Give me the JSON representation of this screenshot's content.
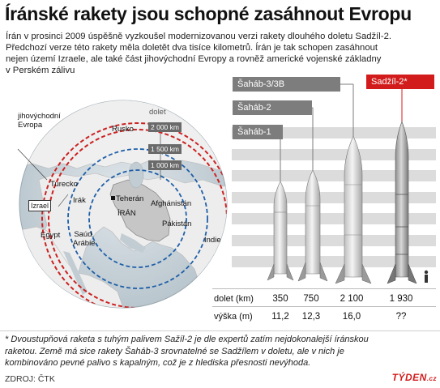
{
  "title": "Íránské rakety jsou schopné zasáhnout Evropu",
  "intro_lines": [
    "Írán v prosinci 2009 úspěšně vyzkoušel modernizovanou verzi rakety dlouhého doletu Sadžíl-2.",
    "Předchozí verze této rakety měla doletět dva tisíce kilometrů. Írán je tak schopen zasáhnout",
    "nejen území Izraele, ale také část jihovýchodní Evropy a rovněž americké vojenské základny",
    "v Perském zálivu"
  ],
  "map": {
    "legend_title": "dolet",
    "ranges": [
      "2 000 km",
      "1 500 km",
      "1 000 km"
    ],
    "labels": {
      "se_europe_1": "jihovýchodní",
      "se_europe_2": "Evropa",
      "russia": "Rusko",
      "turkey": "Turecko",
      "israel": "Izrael",
      "iraq": "Irák",
      "tehran": "Teherán",
      "iran": "ÍRÁN",
      "afghanistan": "Afghánistán",
      "pakistan": "Pákistán",
      "egypt": "Egypt",
      "saudi_1": "Saúd.",
      "saudi_2": "Arábie",
      "india": "Indie"
    }
  },
  "rockets": {
    "tags": {
      "shahab3": "Šaháb-3/3B",
      "shahab2": "Šaháb-2",
      "shahab1": "Šaháb-1",
      "sejjil": "Sadžíl-2*"
    },
    "row_labels": {
      "range": "dolet (km)",
      "height": "výška (m)"
    }
  },
  "chart_data": {
    "type": "table",
    "columns": [
      "Šaháb-1",
      "Šaháb-2",
      "Šaháb-3/3B",
      "Sadžíl-2*"
    ],
    "rows": [
      {
        "label": "dolet (km)",
        "values": [
          "350",
          "750",
          "2 100",
          "1 930"
        ]
      },
      {
        "label": "výška (m)",
        "values": [
          "11,2",
          "12,3",
          "16,0",
          "??"
        ]
      }
    ]
  },
  "footnote_lines": [
    "* Dvoustupňová raketa s tuhým palivem Sažíl-2 je dle expertů zatím nejdokonalejší íránskou",
    "raketou. Země má sice rakety Šaháb-3 srovnatelné se Sadžílem v doletu, ale v nich je",
    "kombinováno pevné palivo s kapalným, což je z hlediska přesnosti nevýhoda."
  ],
  "source": "ZDROJ: ČTK",
  "brand": "TÝDEN",
  "brand_suffix": ".cz",
  "colors": {
    "accent_red": "#d21c1c",
    "tag_gray": "#7d7d7d",
    "ocean": "#c9d3d9",
    "land": "#ededed",
    "iran": "#c8c8c8",
    "range_red": "#cc2222",
    "range_blue": "#1f5fa8"
  }
}
